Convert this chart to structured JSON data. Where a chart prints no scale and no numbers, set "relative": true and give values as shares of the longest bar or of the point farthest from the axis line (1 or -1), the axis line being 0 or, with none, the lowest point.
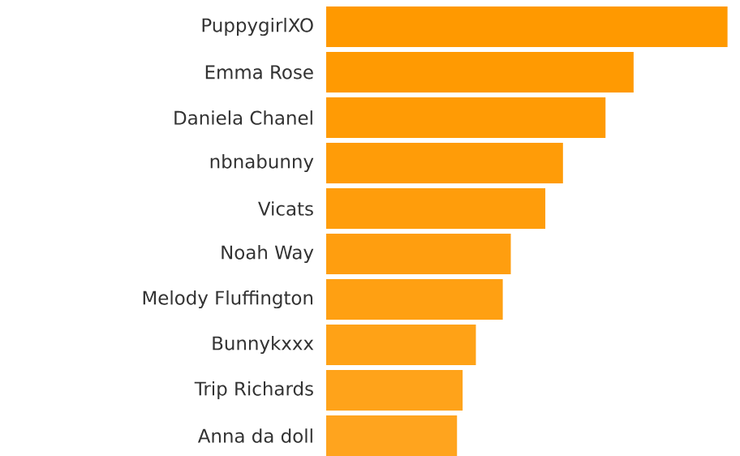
{
  "chart_data": {
    "type": "bar",
    "orientation": "horizontal",
    "relative": true,
    "categories": [
      "PuppygirlXO",
      "Emma Rose",
      "Daniela Chanel",
      "nbnabunny",
      "Vicats",
      "Noah Way",
      "Melody Fluffington",
      "Bunnykxxx",
      "Trip Richards",
      "Anna da doll"
    ],
    "values": [
      1,
      0.766,
      0.696,
      0.59,
      0.546,
      0.46,
      0.44,
      0.373,
      0.34,
      0.326
    ],
    "colors": [
      "#ff9900",
      "#ff9a02",
      "#ff9b05",
      "#ff9c08",
      "#ff9d0b",
      "#ff9e0f",
      "#ffa012",
      "#ffa216",
      "#ffa31a",
      "#ffa41e"
    ]
  }
}
